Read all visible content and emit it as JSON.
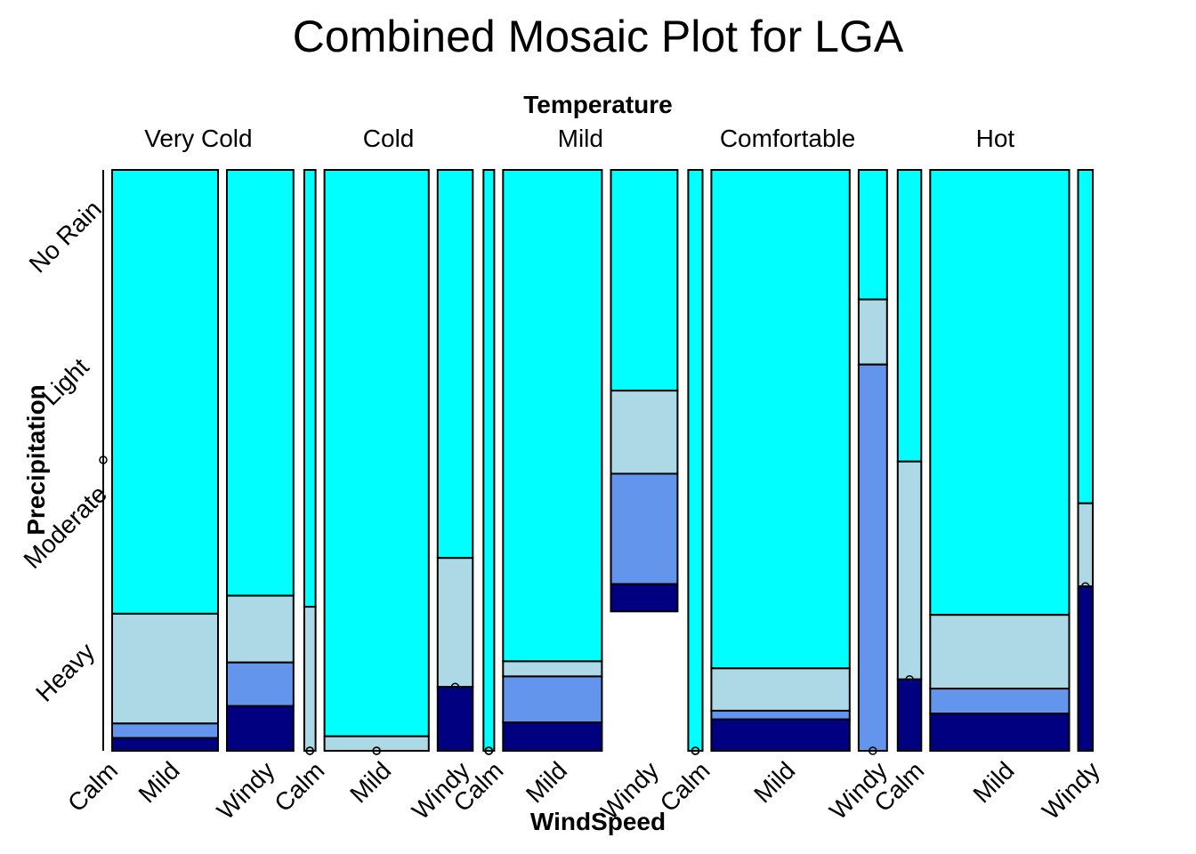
{
  "chart_data": {
    "type": "mosaic",
    "title": "Combined Mosaic Plot for LGA",
    "top_axis_label": "Temperature",
    "bottom_axis_label": "WindSpeed",
    "left_axis_label": "Precipitation",
    "temperature_levels": [
      "Very Cold",
      "Cold",
      "Mild",
      "Comfortable",
      "Hot"
    ],
    "windspeed_levels": [
      "Calm",
      "Mild",
      "Windy"
    ],
    "precipitation_levels": [
      "No Rain",
      "Light",
      "Moderate",
      "Heavy"
    ],
    "temperature_proportions": [
      0.201,
      0.178,
      0.205,
      0.21,
      0.206
    ],
    "windspeed_proportions_within_temperature": [
      [
        0.0,
        0.614,
        0.386
      ],
      [
        0.075,
        0.692,
        0.233
      ],
      [
        0.061,
        0.561,
        0.378
      ],
      [
        0.079,
        0.764,
        0.157
      ],
      [
        0.133,
        0.784,
        0.083
      ]
    ],
    "precipitation_proportions_within_cell": [
      [
        [
          0.0,
          0.0,
          0.0,
          1.0
        ],
        [
          0.764,
          0.189,
          0.025,
          0.022
        ],
        [
          0.733,
          0.115,
          0.075,
          0.077
        ]
      ],
      [
        [
          0.752,
          0.248,
          0.0,
          0.0
        ],
        [
          0.975,
          0.025,
          0.0,
          0.0
        ],
        [
          0.668,
          0.222,
          0.0,
          0.11
        ]
      ],
      [
        [
          1.0,
          0.0,
          0.0,
          0.0
        ],
        [
          0.846,
          0.026,
          0.079,
          0.049
        ],
        [
          0.38,
          0.143,
          0.19,
          0.047
        ]
      ],
      [
        [
          1.0,
          0.0,
          0.0,
          0.0
        ],
        [
          0.858,
          0.073,
          0.015,
          0.054
        ],
        [
          0.223,
          0.112,
          0.665,
          0.0
        ]
      ],
      [
        [
          0.502,
          0.375,
          0.0,
          0.123
        ],
        [
          0.766,
          0.127,
          0.043,
          0.064
        ],
        [
          0.574,
          0.143,
          0.0,
          0.283
        ]
      ]
    ],
    "colors": {
      "No Rain": "#00FFFF",
      "Light": "#ADD8E6",
      "Moderate": "#6495ED",
      "Heavy": "#000080"
    },
    "grid": false
  }
}
